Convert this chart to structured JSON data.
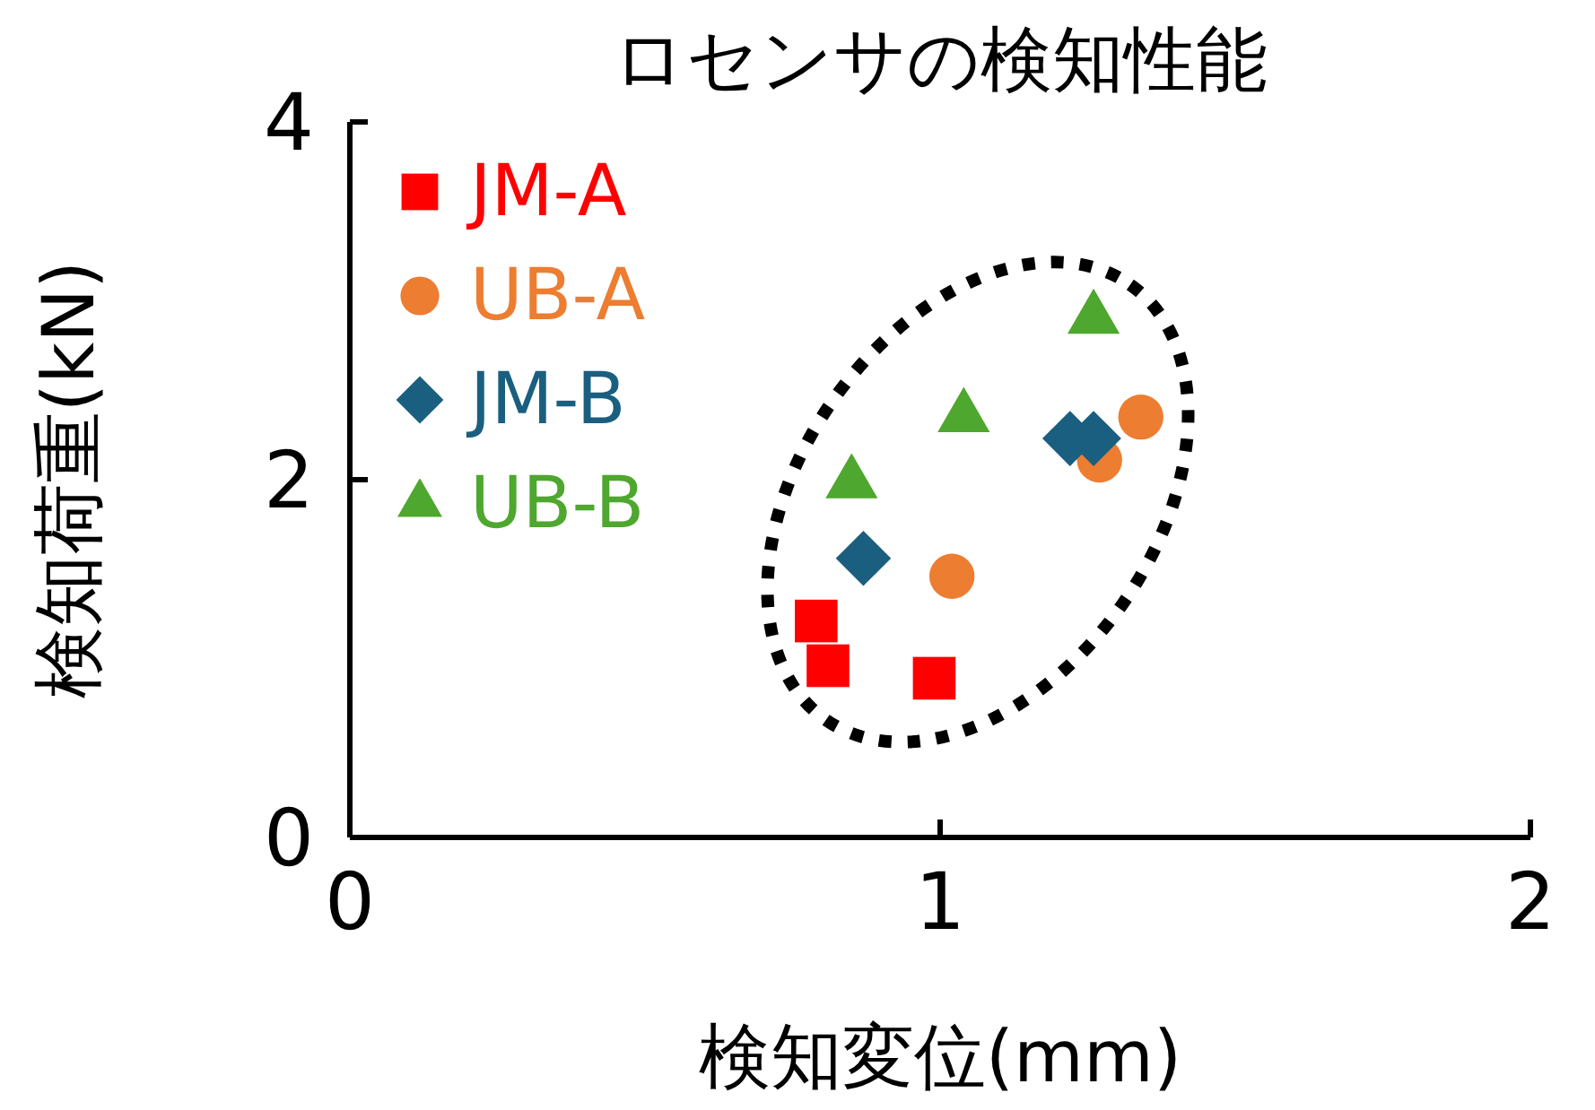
{
  "chart_data": {
    "type": "scatter",
    "title": "ロセンサの検知性能",
    "xlabel": "検知変位(mm)",
    "ylabel": "検知荷重(kN)",
    "xlim": [
      0,
      2
    ],
    "xticks": [
      0,
      1,
      2
    ],
    "ylim": [
      0,
      4
    ],
    "yticks": [
      0,
      2,
      4
    ],
    "grid": false,
    "legend": "top left",
    "series": [
      {
        "name": "JM-A",
        "color": "#ff0000",
        "marker": "square",
        "x": [
          0.79,
          0.81,
          0.99
        ],
        "values": [
          1.21,
          0.96,
          0.89
        ]
      },
      {
        "name": "UB-A",
        "color": "#ed7d31",
        "marker": "circle",
        "x": [
          1.02,
          1.27,
          1.34
        ],
        "values": [
          1.46,
          2.11,
          2.35
        ]
      },
      {
        "name": "JM-B",
        "color": "#1a5f80",
        "marker": "diamond",
        "x": [
          0.87,
          1.22,
          1.26
        ],
        "values": [
          1.56,
          2.23,
          2.23
        ]
      },
      {
        "name": "UB-B",
        "color": "#4ea72e",
        "marker": "triangle",
        "x": [
          0.85,
          1.04,
          1.26
        ],
        "values": [
          1.98,
          2.35,
          2.9
        ]
      }
    ]
  }
}
